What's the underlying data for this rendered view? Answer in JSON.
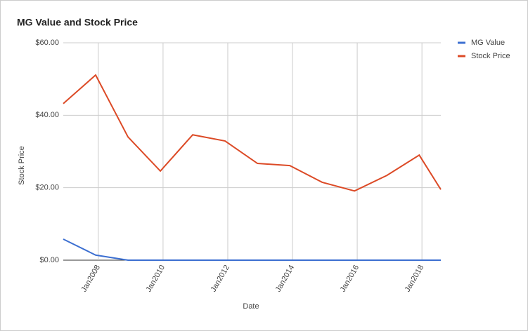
{
  "chart_data": {
    "type": "line",
    "title": "MG Value and Stock Price",
    "x_label": "Date",
    "y_label": "Stock Price",
    "x": [
      "2006-12",
      "2007-12",
      "2008-12",
      "2009-12",
      "2010-12",
      "2011-12",
      "2012-12",
      "2013-12",
      "2014-12",
      "2015-12",
      "2016-12",
      "2017-12",
      "2018-08"
    ],
    "series": [
      {
        "name": "MG Value",
        "color": "#3c6fd1",
        "values": [
          5.8,
          1.4,
          0,
          0,
          0,
          0,
          0,
          0,
          0,
          0,
          0,
          0,
          0
        ]
      },
      {
        "name": "Stock Price",
        "color": "#dc4a26",
        "values": [
          43.2,
          51.1,
          34.0,
          24.6,
          34.6,
          32.9,
          26.7,
          26.1,
          21.5,
          19.1,
          23.4,
          29.0,
          19.5
        ]
      }
    ],
    "xlim": [
      "2006-12",
      "2018-08"
    ],
    "xticks": [
      {
        "value": "2008-01",
        "label": "Jan2008"
      },
      {
        "value": "2010-01",
        "label": "Jan2010"
      },
      {
        "value": "2012-01",
        "label": "Jan2012"
      },
      {
        "value": "2014-01",
        "label": "Jan2014"
      },
      {
        "value": "2016-01",
        "label": "Jan2016"
      },
      {
        "value": "2018-01",
        "label": "Jan2018"
      }
    ],
    "ylim": [
      0,
      60
    ],
    "yticks": [
      {
        "value": 0,
        "label": "$0.00"
      },
      {
        "value": 20,
        "label": "$20.00"
      },
      {
        "value": 40,
        "label": "$40.00"
      },
      {
        "value": 60,
        "label": "$60.00"
      }
    ],
    "grid": true,
    "legend": "right"
  }
}
